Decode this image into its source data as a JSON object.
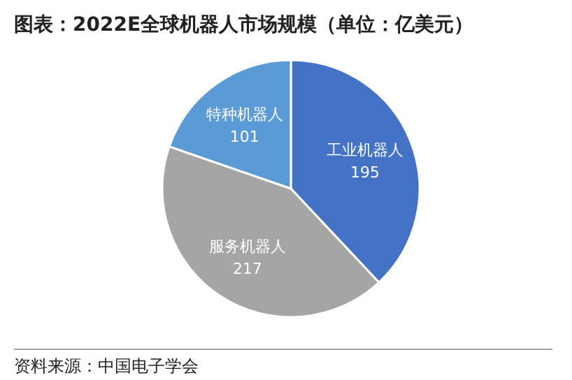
{
  "chart_data": {
    "type": "pie",
    "title": "图表：2022E全球机器人市场规模（单位：亿美元）",
    "categories": [
      "工业机器人",
      "服务机器人",
      "特种机器人"
    ],
    "values": [
      195,
      217,
      101
    ],
    "colors": [
      "#4472c4",
      "#a5a5a5",
      "#5b9bd5"
    ],
    "data_labels": true,
    "legend": false,
    "annotations": [
      "资料来源：中国电子学会"
    ]
  }
}
